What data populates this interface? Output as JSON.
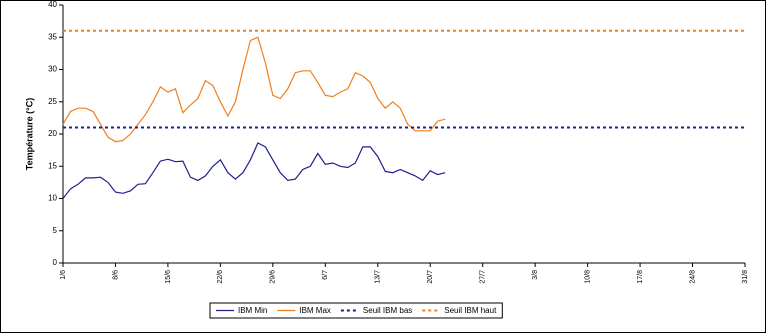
{
  "chart_data": {
    "type": "line",
    "ylabel": "Température (°C)",
    "ylim": [
      0,
      40
    ],
    "yticks": [
      0,
      5,
      10,
      15,
      20,
      25,
      30,
      35,
      40
    ],
    "categories": [
      "1/6",
      null,
      null,
      null,
      null,
      null,
      null,
      "8/6",
      null,
      null,
      null,
      null,
      null,
      null,
      "15/6",
      null,
      null,
      null,
      null,
      null,
      null,
      "22/6",
      null,
      null,
      null,
      null,
      null,
      null,
      "29/6",
      null,
      null,
      null,
      null,
      null,
      null,
      "6/7",
      null,
      null,
      null,
      null,
      null,
      null,
      "13/7",
      null,
      null,
      null,
      null,
      null,
      null,
      "20/7",
      null,
      null,
      null,
      null,
      null,
      null,
      "27/7",
      null,
      null,
      null,
      null,
      null,
      null,
      "3/8",
      null,
      null,
      null,
      null,
      null,
      null,
      "10/8",
      null,
      null,
      null,
      null,
      null,
      null,
      "17/8",
      null,
      null,
      null,
      null,
      null,
      null,
      "24/8",
      null,
      null,
      null,
      null,
      null,
      null,
      "31/8"
    ],
    "series": [
      {
        "name": "IBM Min",
        "color": "#1f1f8f",
        "dashed": false,
        "values": [
          10,
          11.5,
          12.2,
          13.2,
          13.2,
          13.3,
          12.5,
          11,
          10.8,
          11.2,
          12.2,
          12.3,
          14,
          15.8,
          16.1,
          15.7,
          15.8,
          13.3,
          12.8,
          13.5,
          15,
          16,
          14,
          13,
          14,
          16,
          18.6,
          18,
          16,
          14,
          12.8,
          13,
          14.5,
          15,
          17,
          15.3,
          15.5,
          15,
          14.8,
          15.5,
          18,
          18,
          16.5,
          14.2,
          14,
          14.5,
          14,
          13.5,
          12.8,
          14.3,
          13.7,
          14,
          null,
          null,
          null,
          null,
          null,
          null,
          null,
          null,
          null,
          null,
          null,
          null,
          null,
          null,
          null,
          null,
          null,
          null,
          null,
          null,
          null,
          null,
          null,
          null,
          null,
          null,
          null,
          null,
          null,
          null,
          null,
          null,
          null,
          null,
          null,
          null,
          null,
          null,
          null,
          null
        ]
      },
      {
        "name": "IBM Max",
        "color": "#f07f1e",
        "dashed": false,
        "values": [
          21.5,
          23.5,
          24,
          24,
          23.5,
          21.5,
          19.5,
          18.8,
          19,
          20,
          21.5,
          23,
          25,
          27.3,
          26.5,
          27,
          23.3,
          24.5,
          25.5,
          28.3,
          27.5,
          25,
          22.8,
          25,
          30,
          34.5,
          35,
          31,
          26,
          25.5,
          27,
          29.5,
          29.8,
          29.8,
          28,
          26,
          25.8,
          26.5,
          27,
          29.5,
          29,
          28,
          25.5,
          24,
          25,
          24,
          21.5,
          20.5,
          20.5,
          20.5,
          22,
          22.3,
          null,
          null,
          null,
          null,
          null,
          null,
          null,
          null,
          null,
          null,
          null,
          null,
          null,
          null,
          null,
          null,
          null,
          null,
          null,
          null,
          null,
          null,
          null,
          null,
          null,
          null,
          null,
          null,
          null,
          null,
          null,
          null,
          null,
          null,
          null,
          null,
          null,
          null,
          null,
          null
        ]
      },
      {
        "name": "Seuil IBM bas",
        "color": "#1f1f8f",
        "dashed": true,
        "values": [
          21,
          21,
          21,
          21,
          21,
          21,
          21,
          21,
          21,
          21,
          21,
          21,
          21,
          21,
          21,
          21,
          21,
          21,
          21,
          21,
          21,
          21,
          21,
          21,
          21,
          21,
          21,
          21,
          21,
          21,
          21,
          21,
          21,
          21,
          21,
          21,
          21,
          21,
          21,
          21,
          21,
          21,
          21,
          21,
          21,
          21,
          21,
          21,
          21,
          21,
          21,
          21,
          21,
          21,
          21,
          21,
          21,
          21,
          21,
          21,
          21,
          21,
          21,
          21,
          21,
          21,
          21,
          21,
          21,
          21,
          21,
          21,
          21,
          21,
          21,
          21,
          21,
          21,
          21,
          21,
          21,
          21,
          21,
          21,
          21,
          21,
          21,
          21,
          21,
          21,
          21,
          21
        ]
      },
      {
        "name": "Seuil IBM haut",
        "color": "#f07f1e",
        "dashed": true,
        "values": [
          36,
          36,
          36,
          36,
          36,
          36,
          36,
          36,
          36,
          36,
          36,
          36,
          36,
          36,
          36,
          36,
          36,
          36,
          36,
          36,
          36,
          36,
          36,
          36,
          36,
          36,
          36,
          36,
          36,
          36,
          36,
          36,
          36,
          36,
          36,
          36,
          36,
          36,
          36,
          36,
          36,
          36,
          36,
          36,
          36,
          36,
          36,
          36,
          36,
          36,
          36,
          36,
          36,
          36,
          36,
          36,
          36,
          36,
          36,
          36,
          36,
          36,
          36,
          36,
          36,
          36,
          36,
          36,
          36,
          36,
          36,
          36,
          36,
          36,
          36,
          36,
          36,
          36,
          36,
          36,
          36,
          36,
          36,
          36,
          36,
          36,
          36,
          36,
          36,
          36,
          36,
          36
        ]
      }
    ]
  }
}
